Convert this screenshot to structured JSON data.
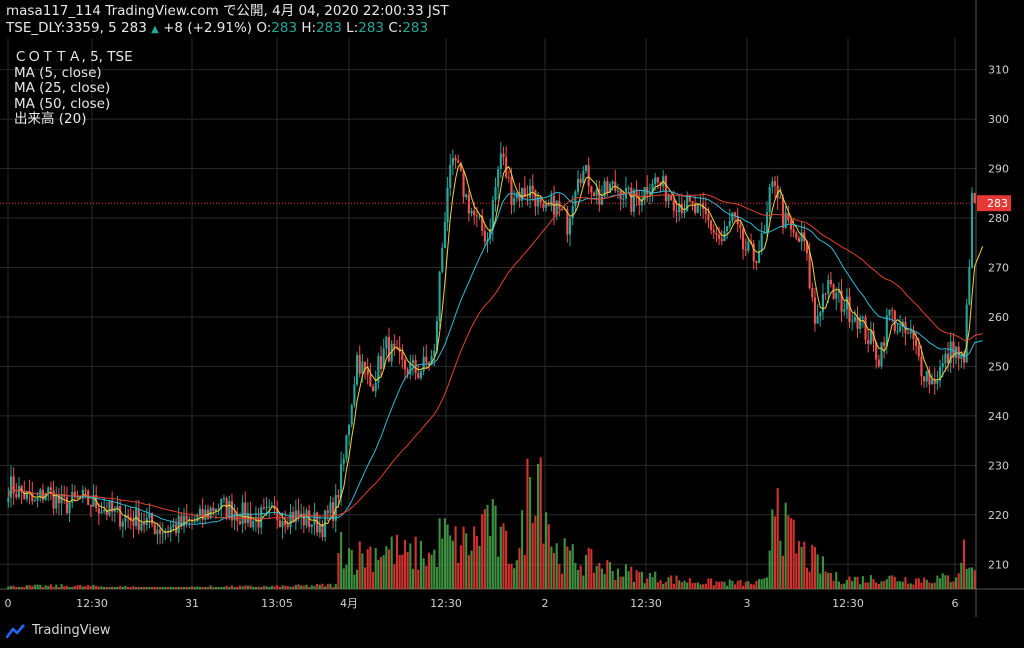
{
  "header": {
    "published": "masa117_114 TradingView.com で公開, 4月 04, 2020 22:00:33 JST",
    "symbol": "TSE_DLY:3359, 5",
    "last": "283",
    "change_arrow": "▲",
    "change": "+8 (+2.91%)",
    "o_label": "O:",
    "o_val": "283",
    "h_label": "H:",
    "h_val": "283",
    "l_label": "L:",
    "l_val": "283",
    "c_label": "C:",
    "c_val": "283"
  },
  "legend": {
    "title": "ＣＯＴＴＡ, 5, TSE",
    "ma5": "MA (5, close)",
    "ma25": "MA (25, close)",
    "ma50": "MA (50, close)",
    "volume": "出来高 (20)"
  },
  "watermark": "TradingView",
  "colors": {
    "up": "#26a69a",
    "down": "#ef5350",
    "ma5": "#f2d339",
    "ma25": "#2fb8d3",
    "ma50": "#e0412f",
    "grid": "#2a2a2a",
    "price_line": "#e53935",
    "vol_up": "#43a047",
    "vol_down": "#e53935"
  },
  "chart_data": {
    "type": "candlestick",
    "symbol": "TSE_DLY:3359, 5",
    "y_range": [
      205,
      316
    ],
    "y_ticks": [
      210,
      220,
      230,
      240,
      250,
      260,
      270,
      280,
      290,
      300,
      310
    ],
    "x_tick_labels": [
      "0",
      "12:30",
      "31",
      "13:05",
      "4月",
      "12:30",
      "2",
      "12:30",
      "3",
      "12:30",
      "6"
    ],
    "current_price": 283,
    "price_path": [
      [
        0,
        226
      ],
      [
        6,
        224
      ],
      [
        10,
        222
      ],
      [
        14,
        225
      ],
      [
        20,
        222
      ],
      [
        28,
        223
      ],
      [
        34,
        222
      ],
      [
        40,
        220
      ],
      [
        50,
        219
      ],
      [
        58,
        217
      ],
      [
        66,
        218
      ],
      [
        72,
        219
      ],
      [
        78,
        222
      ],
      [
        84,
        221
      ],
      [
        92,
        219
      ],
      [
        100,
        220
      ],
      [
        106,
        220
      ],
      [
        112,
        219
      ],
      [
        118,
        218
      ],
      [
        123,
        222
      ],
      [
        126,
        231
      ],
      [
        131,
        252
      ],
      [
        136,
        246
      ],
      [
        142,
        254
      ],
      [
        148,
        250
      ],
      [
        154,
        249
      ],
      [
        160,
        252
      ],
      [
        162,
        268
      ],
      [
        165,
        287
      ],
      [
        168,
        291
      ],
      [
        172,
        284
      ],
      [
        176,
        279
      ],
      [
        180,
        276
      ],
      [
        185,
        293
      ],
      [
        189,
        285
      ],
      [
        193,
        285
      ],
      [
        197,
        286
      ],
      [
        201,
        280
      ],
      [
        205,
        283
      ],
      [
        210,
        279
      ],
      [
        214,
        290
      ],
      [
        218,
        288
      ],
      [
        222,
        284
      ],
      [
        226,
        286
      ],
      [
        230,
        286
      ],
      [
        234,
        283
      ],
      [
        238,
        285
      ],
      [
        242,
        288
      ],
      [
        246,
        286
      ],
      [
        250,
        284
      ],
      [
        256,
        282
      ],
      [
        262,
        280
      ],
      [
        268,
        275
      ],
      [
        272,
        280
      ],
      [
        276,
        274
      ],
      [
        280,
        272
      ],
      [
        284,
        276
      ],
      [
        286,
        284
      ],
      [
        288,
        288
      ],
      [
        291,
        280
      ],
      [
        295,
        276
      ],
      [
        299,
        275
      ],
      [
        303,
        259
      ],
      [
        307,
        266
      ],
      [
        311,
        264
      ],
      [
        315,
        262
      ],
      [
        319,
        260
      ],
      [
        323,
        256
      ],
      [
        327,
        252
      ],
      [
        331,
        261
      ],
      [
        335,
        257
      ],
      [
        339,
        256
      ],
      [
        343,
        250
      ],
      [
        347,
        247
      ],
      [
        351,
        250
      ],
      [
        355,
        254
      ],
      [
        359,
        250
      ],
      [
        362,
        283
      ]
    ],
    "volume_path": [
      [
        0,
        3
      ],
      [
        20,
        4
      ],
      [
        40,
        3
      ],
      [
        60,
        2
      ],
      [
        80,
        3
      ],
      [
        100,
        3
      ],
      [
        123,
        5
      ],
      [
        125,
        60
      ],
      [
        130,
        40
      ],
      [
        135,
        45
      ],
      [
        140,
        50
      ],
      [
        145,
        48
      ],
      [
        150,
        40
      ],
      [
        155,
        45
      ],
      [
        160,
        40
      ],
      [
        163,
        72
      ],
      [
        166,
        55
      ],
      [
        170,
        55
      ],
      [
        175,
        58
      ],
      [
        180,
        95
      ],
      [
        184,
        60
      ],
      [
        189,
        46
      ],
      [
        192,
        42
      ],
      [
        198,
        190
      ],
      [
        205,
        48
      ],
      [
        210,
        40
      ],
      [
        215,
        35
      ],
      [
        222,
        30
      ],
      [
        230,
        22
      ],
      [
        240,
        16
      ],
      [
        250,
        12
      ],
      [
        260,
        9
      ],
      [
        270,
        8
      ],
      [
        280,
        7
      ],
      [
        285,
        10
      ],
      [
        288,
        160
      ],
      [
        292,
        70
      ],
      [
        296,
        55
      ],
      [
        300,
        40
      ],
      [
        305,
        30
      ],
      [
        310,
        14
      ],
      [
        320,
        12
      ],
      [
        330,
        14
      ],
      [
        340,
        12
      ],
      [
        350,
        13
      ],
      [
        355,
        14
      ],
      [
        359,
        45
      ],
      [
        362,
        22
      ]
    ],
    "ma_periods": [
      5,
      25,
      50
    ],
    "volume_ma_period": 20
  }
}
